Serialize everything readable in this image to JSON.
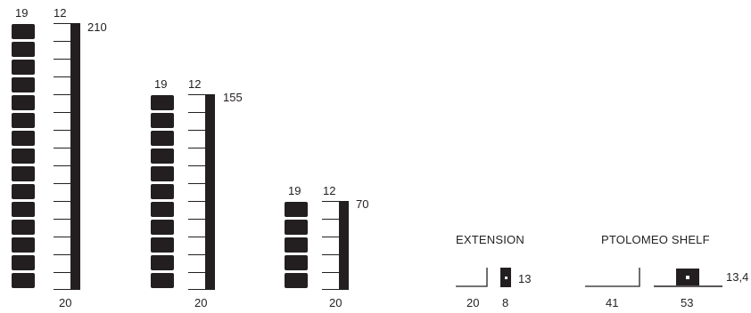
{
  "colors": {
    "ink": "#231f20",
    "background": "#ffffff"
  },
  "units": [
    {
      "block_width": "19",
      "pole_width": "12",
      "height": "210",
      "depth": "20",
      "block_count": 15
    },
    {
      "block_width": "19",
      "pole_width": "12",
      "height": "155",
      "depth": "20",
      "block_count": 11
    },
    {
      "block_width": "19",
      "pole_width": "12",
      "height": "70",
      "depth": "20",
      "block_count": 5
    }
  ],
  "extension": {
    "title": "EXTENSION",
    "depth": "20",
    "width": "8",
    "height": "13"
  },
  "shelf": {
    "title": "PTOLOMEO SHELF",
    "depth": "41",
    "width": "53",
    "height": "13,4"
  }
}
